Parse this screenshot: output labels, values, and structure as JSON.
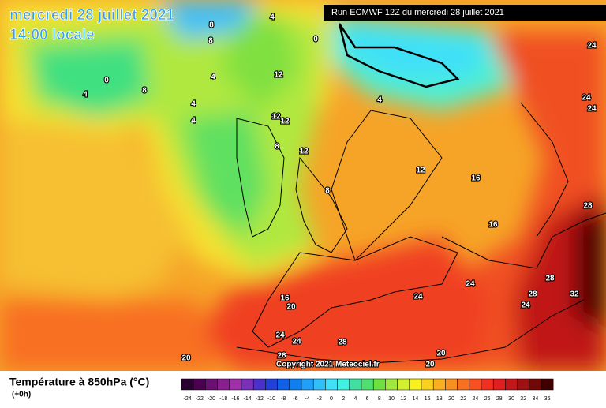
{
  "header": {
    "date": "mercredi 28 juillet 2021",
    "time": "14:00 locale",
    "run": "Run ECMWF 12Z du mercredi 28 juillet 2021"
  },
  "copyright": "Copyright 2021 Meteociel.fr",
  "legend": {
    "title": "Température à 850hPa (°C)",
    "step": "(+0h)",
    "ticks": [
      -24,
      -22,
      -20,
      -18,
      -16,
      -14,
      -12,
      -10,
      -8,
      -6,
      -4,
      -2,
      0,
      2,
      4,
      6,
      8,
      10,
      12,
      14,
      16,
      18,
      20,
      22,
      24,
      26,
      28,
      30,
      32,
      34,
      36
    ],
    "colors": [
      "#2a0030",
      "#4b0050",
      "#6a1070",
      "#8a2090",
      "#a030a8",
      "#7a30b8",
      "#4a30c8",
      "#2040d8",
      "#1060e8",
      "#1080f0",
      "#20a0f8",
      "#30c0f8",
      "#40e0f8",
      "#40f0e0",
      "#40e0a0",
      "#50e070",
      "#70e040",
      "#a0e840",
      "#d0f030",
      "#f8f020",
      "#f8d020",
      "#f8b020",
      "#f89020",
      "#f87020",
      "#f85020",
      "#f03020",
      "#e02020",
      "#c01818",
      "#a01010",
      "#700808",
      "#400000"
    ]
  },
  "map": {
    "contour_labels": [
      4,
      8,
      8,
      0,
      0,
      4,
      8,
      4,
      12,
      4,
      4,
      12,
      12,
      4,
      8,
      12,
      12,
      8,
      16,
      16,
      24,
      24,
      24,
      28,
      16,
      20,
      24,
      24,
      28,
      28,
      32,
      24,
      24,
      24,
      28,
      28,
      20,
      20,
      20
    ]
  }
}
